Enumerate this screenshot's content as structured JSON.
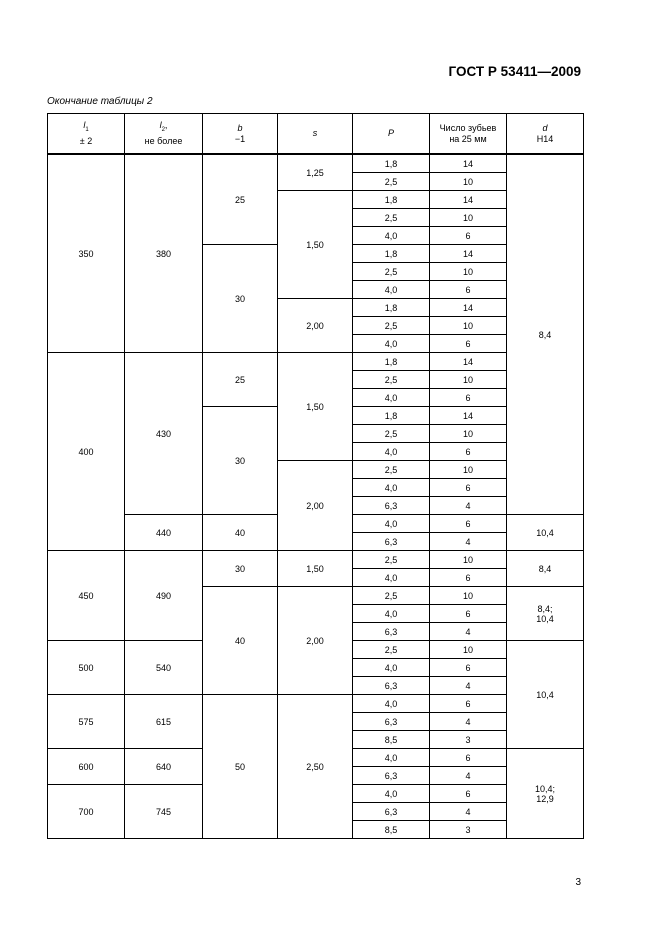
{
  "header": {
    "standard": "ГОСТ Р 53411—2009"
  },
  "caption": "Окончание таблицы 2",
  "table": {
    "columns": [
      {
        "sym": "l",
        "sub": "1",
        "line2": "± 2"
      },
      {
        "sym": "l",
        "sub": "2",
        "suffix": ",",
        "line2": "не более"
      },
      {
        "sym": "b",
        "line2": "−1"
      },
      {
        "sym": "s"
      },
      {
        "sym": "P"
      },
      {
        "line1": "Число зубьев",
        "line2": "на 25 мм"
      },
      {
        "sym": "d",
        "line2": "H14"
      }
    ],
    "l1": [
      {
        "v": "350",
        "n": 11
      },
      {
        "v": "400",
        "n": 11
      },
      {
        "v": "450",
        "n": 5
      },
      {
        "v": "500",
        "n": 3
      },
      {
        "v": "575",
        "n": 3
      },
      {
        "v": "600",
        "n": 2
      },
      {
        "v": "700",
        "n": 3
      }
    ],
    "l2": [
      {
        "v": "380",
        "n": 11
      },
      {
        "v": "430",
        "n": 9
      },
      {
        "v": "440",
        "n": 2
      },
      {
        "v": "490",
        "n": 5
      },
      {
        "v": "540",
        "n": 3
      },
      {
        "v": "615",
        "n": 3
      },
      {
        "v": "640",
        "n": 2
      },
      {
        "v": "745",
        "n": 3
      }
    ],
    "b": [
      {
        "v": "25",
        "n": 5
      },
      {
        "v": "30",
        "n": 6
      },
      {
        "v": "25",
        "n": 3
      },
      {
        "v": "30",
        "n": 6
      },
      {
        "v": "40",
        "n": 2
      },
      {
        "v": "30",
        "n": 2
      },
      {
        "v": "40",
        "n": 6
      },
      {
        "v": "50",
        "n": 8
      }
    ],
    "s": [
      {
        "v": "1,25",
        "n": 2
      },
      {
        "v": "1,50",
        "n": 6
      },
      {
        "v": "2,00",
        "n": 3
      },
      {
        "v": "1,50",
        "n": 6
      },
      {
        "v": "2,00",
        "n": 5
      },
      {
        "v": "1,50",
        "n": 2
      },
      {
        "v": "2,00",
        "n": 6
      },
      {
        "v": "2,50",
        "n": 8
      }
    ],
    "P": [
      "1,8",
      "2,5",
      "1,8",
      "2,5",
      "4,0",
      "1,8",
      "2,5",
      "4,0",
      "1,8",
      "2,5",
      "4,0",
      "1,8",
      "2,5",
      "4,0",
      "1,8",
      "2,5",
      "4,0",
      "2,5",
      "4,0",
      "6,3",
      "4,0",
      "6,3",
      "2,5",
      "4,0",
      "2,5",
      "4,0",
      "6,3",
      "2,5",
      "4,0",
      "6,3",
      "4,0",
      "6,3",
      "8,5",
      "4,0",
      "6,3",
      "4,0",
      "6,3",
      "8,5"
    ],
    "teeth": [
      "14",
      "10",
      "14",
      "10",
      "6",
      "14",
      "10",
      "6",
      "14",
      "10",
      "6",
      "14",
      "10",
      "6",
      "14",
      "10",
      "6",
      "10",
      "6",
      "4",
      "6",
      "4",
      "10",
      "6",
      "10",
      "6",
      "4",
      "10",
      "6",
      "4",
      "6",
      "4",
      "3",
      "6",
      "4",
      "6",
      "4",
      "3"
    ],
    "d": [
      {
        "v": [
          "8,4"
        ],
        "n": 20
      },
      {
        "v": [
          "10,4"
        ],
        "n": 2
      },
      {
        "v": [
          "8,4"
        ],
        "n": 2
      },
      {
        "v": [
          "8,4;",
          "10,4"
        ],
        "n": 3
      },
      {
        "v": [
          "10,4"
        ],
        "n": 6
      },
      {
        "v": [
          "10,4;",
          "12,9"
        ],
        "n": 5
      }
    ]
  },
  "page_number": "3"
}
